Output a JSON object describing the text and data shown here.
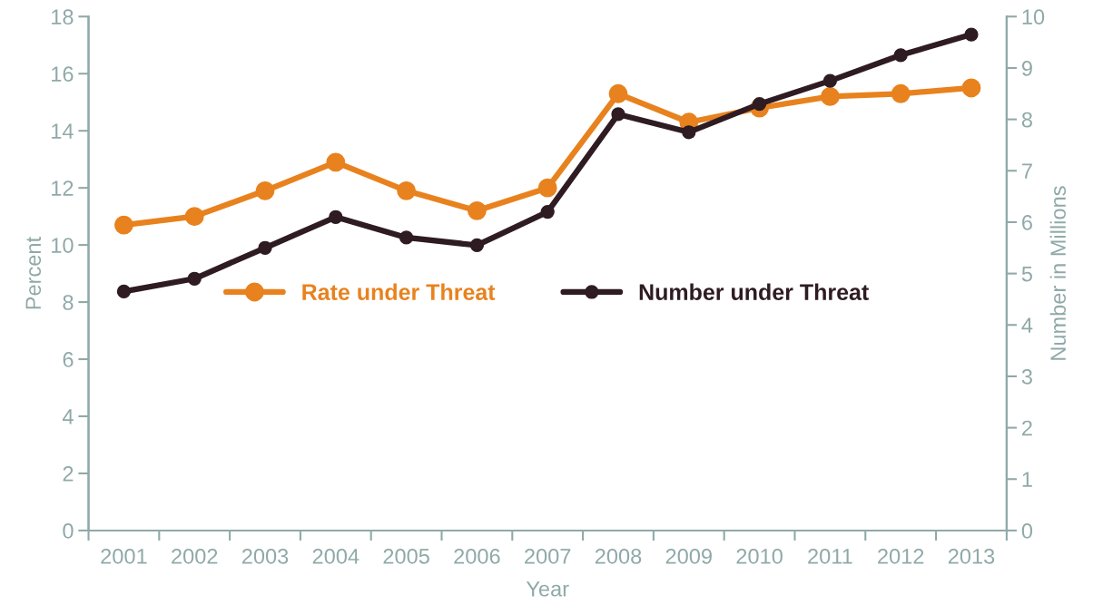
{
  "chart_data": {
    "type": "line",
    "xlabel": "Year",
    "ylabel": "Percent",
    "y2label": "Number in Millions",
    "categories": [
      "2001",
      "2002",
      "2003",
      "2004",
      "2005",
      "2006",
      "2007",
      "2008",
      "2009",
      "2010",
      "2011",
      "2012",
      "2013"
    ],
    "series": [
      {
        "name": "Rate under Threat",
        "color": "#e8821e",
        "values": [
          10.7,
          11.0,
          11.9,
          12.9,
          11.9,
          11.2,
          12.0,
          15.3,
          14.3,
          14.8,
          15.2,
          15.3,
          15.5
        ]
      },
      {
        "name": "Number under Threat",
        "color": "#2e1c22",
        "axis": "y2",
        "values": [
          4.65,
          4.9,
          5.5,
          6.1,
          5.7,
          5.55,
          6.2,
          8.1,
          7.75,
          8.3,
          8.75,
          9.25,
          9.65
        ]
      }
    ],
    "ylim": [
      0,
      18
    ],
    "yticks": [
      0,
      2,
      4,
      6,
      8,
      10,
      12,
      14,
      16,
      18
    ],
    "y2lim": [
      0,
      10
    ],
    "y2ticks": [
      0,
      1,
      2,
      3,
      4,
      5,
      6,
      7,
      8,
      9,
      10
    ],
    "marker": "circle",
    "line_style": "solid",
    "grid": false,
    "legend": "center"
  }
}
